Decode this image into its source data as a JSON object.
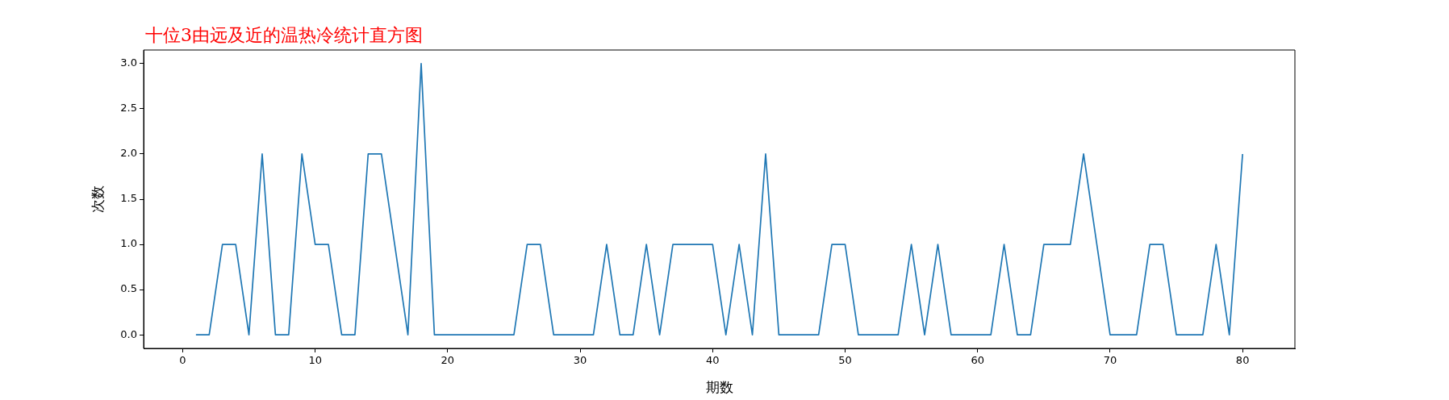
{
  "chart_data": {
    "type": "line",
    "title": "十位3由远及近的温热冷统计直方图",
    "xlabel": "期数",
    "ylabel": "次数",
    "x": [
      1,
      2,
      3,
      4,
      5,
      6,
      7,
      8,
      9,
      10,
      11,
      12,
      13,
      14,
      15,
      16,
      17,
      18,
      19,
      20,
      21,
      22,
      23,
      24,
      25,
      26,
      27,
      28,
      29,
      30,
      31,
      32,
      33,
      34,
      35,
      36,
      37,
      38,
      39,
      40,
      41,
      42,
      43,
      44,
      45,
      46,
      47,
      48,
      49,
      50,
      51,
      52,
      53,
      54,
      55,
      56,
      57,
      58,
      59,
      60,
      61,
      62,
      63,
      64,
      65,
      66,
      67,
      68,
      69,
      70,
      71,
      72,
      73,
      74,
      75,
      76,
      77,
      78,
      79,
      80
    ],
    "series": [
      {
        "color": "#1f77b4",
        "values": [
          0,
          0,
          1,
          1,
          0,
          2,
          0,
          0,
          2,
          1,
          1,
          0,
          0,
          2,
          2,
          1,
          0,
          3,
          0,
          0,
          0,
          0,
          0,
          0,
          0,
          1,
          1,
          0,
          0,
          0,
          0,
          1,
          0,
          0,
          1,
          0,
          1,
          1,
          1,
          1,
          0,
          1,
          0,
          2,
          0,
          0,
          0,
          0,
          1,
          1,
          0,
          0,
          0,
          0,
          1,
          0,
          1,
          0,
          0,
          0,
          0,
          1,
          0,
          0,
          1,
          1,
          1,
          2,
          1,
          0,
          0,
          0,
          1,
          1,
          0,
          0,
          0,
          1,
          0,
          2
        ]
      }
    ],
    "xlim": [
      -2.95,
      83.95
    ],
    "xticks": [
      0,
      10,
      20,
      30,
      40,
      50,
      60,
      70,
      80
    ],
    "ylim": [
      -0.15,
      3.15
    ],
    "yticks": [
      {
        "value": 0,
        "label": "0.0"
      },
      {
        "value": 0.5,
        "label": "0.5"
      },
      {
        "value": 1,
        "label": "1.0"
      },
      {
        "value": 1.5,
        "label": "1.5"
      },
      {
        "value": 2,
        "label": "2.0"
      },
      {
        "value": 2.5,
        "label": "2.5"
      },
      {
        "value": 3,
        "label": "3.0"
      }
    ],
    "grid": false,
    "legend": false,
    "marker": "none",
    "line_style": "solid"
  }
}
